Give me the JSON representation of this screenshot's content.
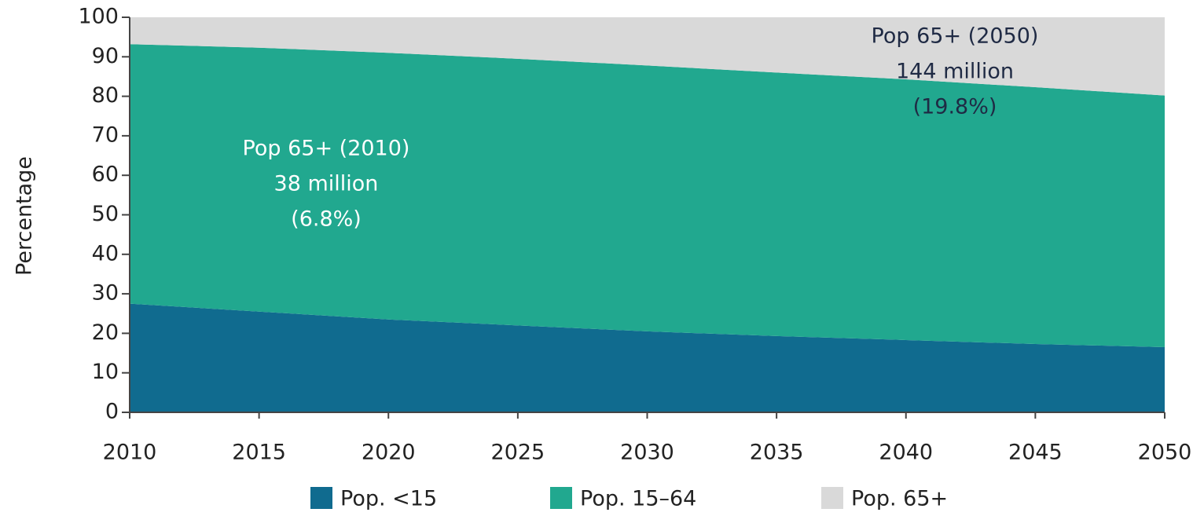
{
  "chart_data": {
    "type": "stacked_area",
    "y_label": "Percentage",
    "x": [
      2010,
      2015,
      2020,
      2025,
      2030,
      2035,
      2040,
      2045,
      2050
    ],
    "xlim": [
      2010,
      2050
    ],
    "xticks": [
      2010,
      2015,
      2020,
      2025,
      2030,
      2035,
      2040,
      2045,
      2050
    ],
    "ylim": [
      0,
      100
    ],
    "yticks": [
      0,
      10,
      20,
      30,
      40,
      50,
      60,
      70,
      80,
      90,
      100
    ],
    "series": [
      {
        "name": "Pop. <15",
        "color": "#106b8f",
        "values": [
          27.5,
          25.5,
          23.5,
          22,
          20.5,
          19.3,
          18.3,
          17.3,
          16.5
        ]
      },
      {
        "name": "Pop. 15–64",
        "color": "#21a88f",
        "values": [
          65.7,
          66.8,
          67.5,
          67.5,
          67.3,
          66.7,
          66,
          65,
          63.7
        ]
      },
      {
        "name": "Pop. 65+",
        "color": "#d9d9d9",
        "values": [
          6.8,
          7.7,
          9,
          10.5,
          12.2,
          14,
          15.7,
          17.7,
          19.8
        ]
      }
    ],
    "annotations": [
      {
        "lines": [
          "Pop 65+ (2010)",
          "38 million",
          "(6.8%)"
        ],
        "color": "#ffffff"
      },
      {
        "lines": [
          "Pop 65+ (2050)",
          "144 million",
          "(19.8%)"
        ],
        "color": "#1f2a44"
      }
    ],
    "legend": "bottom"
  }
}
